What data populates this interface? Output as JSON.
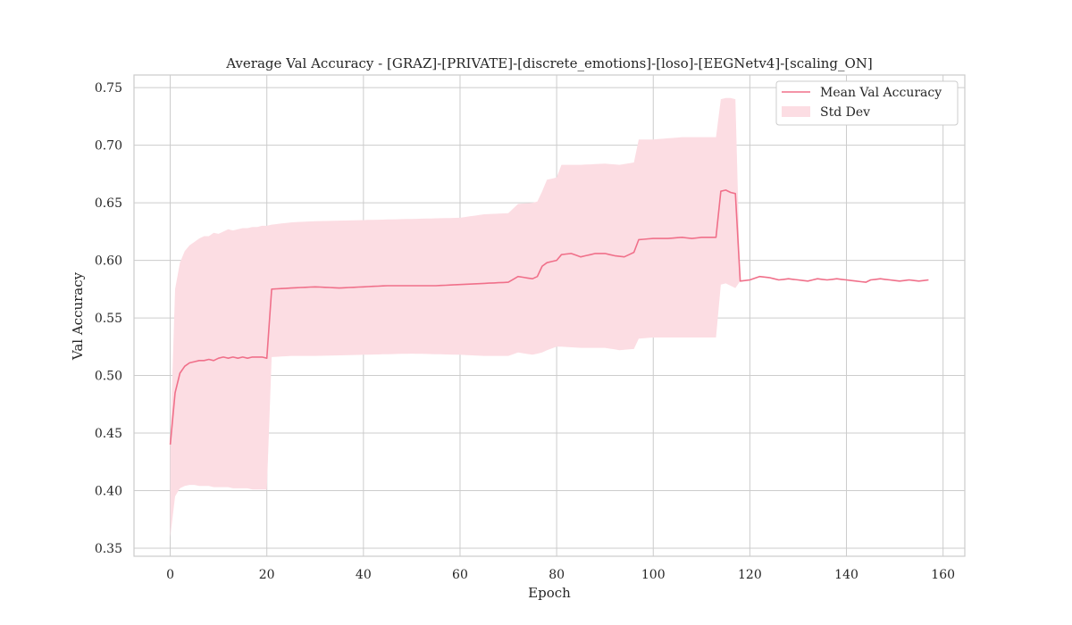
{
  "chart_data": {
    "type": "line",
    "title": "Average Val Accuracy - [GRAZ]-[PRIVATE]-[discrete_emotions]-[loso]-[EEGNetv4]-[scaling_ON]",
    "xlabel": "Epoch",
    "ylabel": "Val Accuracy",
    "xlim": [
      -7.5,
      164.5
    ],
    "ylim": [
      0.343,
      0.761
    ],
    "xticks": [
      0,
      20,
      40,
      60,
      80,
      100,
      120,
      140,
      160
    ],
    "yticks": [
      0.35,
      0.4,
      0.45,
      0.5,
      0.55,
      0.6,
      0.65,
      0.7,
      0.75
    ],
    "grid": true,
    "legend_position": "top-right",
    "colors": {
      "line": "#f0708a",
      "band": "#fcdde3",
      "grid": "#cccccc"
    },
    "segments": [
      {
        "epochs": [
          0,
          20
        ],
        "mean": [
          0.44,
          0.485,
          0.502,
          0.508,
          0.511,
          0.512,
          0.513,
          0.513,
          0.514,
          0.513,
          0.515,
          0.516,
          0.515,
          0.516,
          0.515,
          0.516,
          0.515,
          0.516,
          0.516,
          0.516,
          0.515
        ],
        "std_upper": [
          0.44,
          0.575,
          0.598,
          0.608,
          0.613,
          0.616,
          0.619,
          0.621,
          0.621,
          0.624,
          0.623,
          0.625,
          0.627,
          0.626,
          0.627,
          0.628,
          0.628,
          0.629,
          0.629,
          0.63,
          0.63
        ],
        "std_lower": [
          0.36,
          0.395,
          0.402,
          0.404,
          0.405,
          0.405,
          0.404,
          0.404,
          0.404,
          0.403,
          0.403,
          0.403,
          0.403,
          0.402,
          0.402,
          0.402,
          0.402,
          0.401,
          0.401,
          0.401,
          0.401
        ]
      },
      {
        "epochs": [
          21,
          75
        ],
        "mean_start": 0.575,
        "mean_end": 0.584,
        "mean_points": [
          [
            21,
            0.575
          ],
          [
            25,
            0.576
          ],
          [
            30,
            0.577
          ],
          [
            35,
            0.576
          ],
          [
            40,
            0.577
          ],
          [
            45,
            0.578
          ],
          [
            50,
            0.578
          ],
          [
            55,
            0.578
          ],
          [
            60,
            0.579
          ],
          [
            65,
            0.58
          ],
          [
            70,
            0.581
          ],
          [
            72,
            0.586
          ],
          [
            75,
            0.584
          ]
        ],
        "upper_points": [
          [
            21,
            0.631
          ],
          [
            25,
            0.633
          ],
          [
            30,
            0.634
          ],
          [
            40,
            0.635
          ],
          [
            50,
            0.636
          ],
          [
            60,
            0.637
          ],
          [
            65,
            0.64
          ],
          [
            70,
            0.641
          ],
          [
            72,
            0.649
          ],
          [
            75,
            0.65
          ]
        ],
        "lower_points": [
          [
            21,
            0.516
          ],
          [
            25,
            0.517
          ],
          [
            30,
            0.517
          ],
          [
            40,
            0.518
          ],
          [
            50,
            0.519
          ],
          [
            60,
            0.518
          ],
          [
            65,
            0.517
          ],
          [
            70,
            0.517
          ],
          [
            72,
            0.52
          ],
          [
            75,
            0.518
          ]
        ]
      },
      {
        "epochs": [
          76,
          96
        ],
        "mean_points": [
          [
            76,
            0.586
          ],
          [
            77,
            0.595
          ],
          [
            78,
            0.598
          ],
          [
            80,
            0.6
          ],
          [
            81,
            0.605
          ],
          [
            83,
            0.606
          ],
          [
            85,
            0.603
          ],
          [
            88,
            0.606
          ],
          [
            90,
            0.606
          ],
          [
            92,
            0.604
          ],
          [
            94,
            0.603
          ],
          [
            96,
            0.607
          ]
        ],
        "upper_points": [
          [
            76,
            0.651
          ],
          [
            77,
            0.66
          ],
          [
            78,
            0.67
          ],
          [
            80,
            0.672
          ],
          [
            81,
            0.683
          ],
          [
            85,
            0.683
          ],
          [
            90,
            0.684
          ],
          [
            93,
            0.683
          ],
          [
            96,
            0.685
          ]
        ],
        "lower_points": [
          [
            76,
            0.519
          ],
          [
            77,
            0.52
          ],
          [
            78,
            0.522
          ],
          [
            80,
            0.525
          ],
          [
            81,
            0.525
          ],
          [
            85,
            0.524
          ],
          [
            90,
            0.524
          ],
          [
            93,
            0.522
          ],
          [
            96,
            0.523
          ]
        ]
      },
      {
        "epochs": [
          97,
          113
        ],
        "mean_points": [
          [
            97,
            0.618
          ],
          [
            100,
            0.619
          ],
          [
            103,
            0.619
          ],
          [
            106,
            0.62
          ],
          [
            108,
            0.619
          ],
          [
            110,
            0.62
          ],
          [
            113,
            0.62
          ]
        ],
        "upper_points": [
          [
            97,
            0.705
          ],
          [
            100,
            0.705
          ],
          [
            103,
            0.706
          ],
          [
            106,
            0.707
          ],
          [
            110,
            0.707
          ],
          [
            113,
            0.707
          ]
        ],
        "lower_points": [
          [
            97,
            0.532
          ],
          [
            100,
            0.533
          ],
          [
            103,
            0.533
          ],
          [
            106,
            0.533
          ],
          [
            110,
            0.533
          ],
          [
            113,
            0.533
          ]
        ]
      },
      {
        "epochs": [
          114,
          117
        ],
        "mean_points": [
          [
            114,
            0.66
          ],
          [
            115,
            0.661
          ],
          [
            116,
            0.659
          ],
          [
            117,
            0.658
          ]
        ],
        "upper_points": [
          [
            114,
            0.74
          ],
          [
            115,
            0.741
          ],
          [
            116,
            0.741
          ],
          [
            117,
            0.74
          ]
        ],
        "lower_points": [
          [
            114,
            0.579
          ],
          [
            115,
            0.58
          ],
          [
            116,
            0.578
          ],
          [
            117,
            0.576
          ]
        ]
      },
      {
        "epochs": [
          118,
          157
        ],
        "mean_points": [
          [
            118,
            0.582
          ],
          [
            120,
            0.583
          ],
          [
            122,
            0.586
          ],
          [
            124,
            0.585
          ],
          [
            126,
            0.583
          ],
          [
            128,
            0.584
          ],
          [
            130,
            0.583
          ],
          [
            132,
            0.582
          ],
          [
            134,
            0.584
          ],
          [
            136,
            0.583
          ],
          [
            138,
            0.584
          ],
          [
            140,
            0.583
          ],
          [
            142,
            0.582
          ],
          [
            144,
            0.581
          ],
          [
            145,
            0.583
          ],
          [
            147,
            0.584
          ],
          [
            149,
            0.583
          ],
          [
            151,
            0.582
          ],
          [
            153,
            0.583
          ],
          [
            155,
            0.582
          ],
          [
            157,
            0.583
          ]
        ],
        "upper_points": [
          [
            118,
            0.582
          ],
          [
            157,
            0.583
          ]
        ],
        "lower_points": [
          [
            118,
            0.582
          ],
          [
            157,
            0.583
          ]
        ]
      }
    ],
    "series": [
      {
        "name": "Mean Val Accuracy",
        "kind": "line"
      },
      {
        "name": "Std Dev",
        "kind": "band"
      }
    ]
  }
}
